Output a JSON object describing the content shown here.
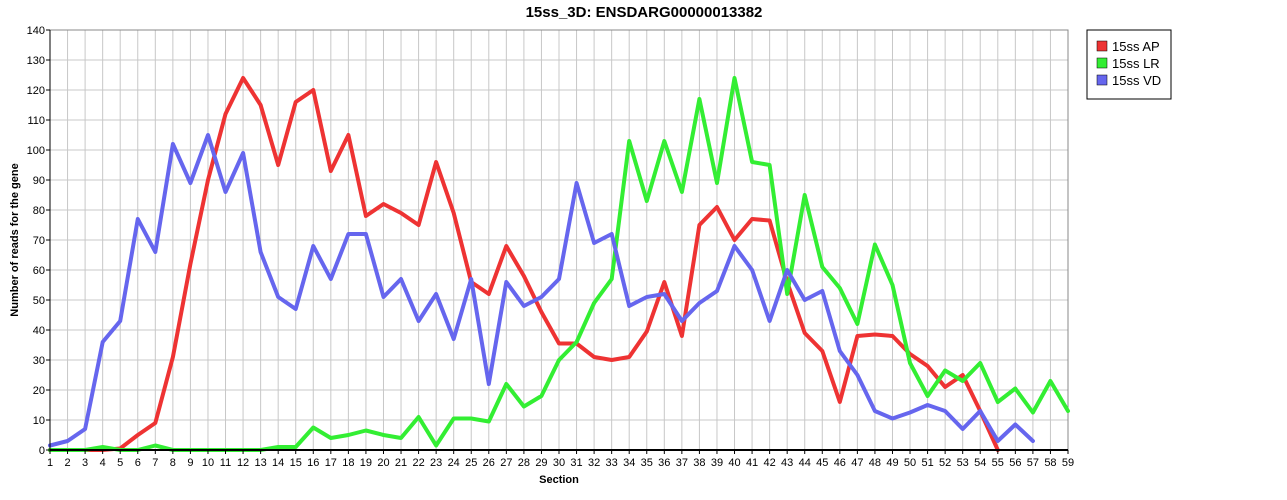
{
  "chart_data": {
    "type": "line",
    "title": "15ss_3D: ENSDARG00000013382",
    "xlabel": "Section",
    "ylabel": "Number of reads for the gene",
    "ylim": [
      0,
      140
    ],
    "yticks": [
      0,
      10,
      20,
      30,
      40,
      50,
      60,
      70,
      80,
      90,
      100,
      110,
      120,
      130,
      140
    ],
    "grid": true,
    "legend_position": "top-right",
    "x": [
      1,
      2,
      3,
      4,
      5,
      6,
      7,
      8,
      9,
      10,
      11,
      12,
      13,
      14,
      15,
      16,
      17,
      18,
      19,
      20,
      21,
      22,
      23,
      24,
      25,
      26,
      27,
      28,
      29,
      30,
      31,
      32,
      33,
      34,
      35,
      36,
      37,
      38,
      39,
      40,
      41,
      42,
      43,
      44,
      45,
      46,
      47,
      48,
      49,
      50,
      51,
      52,
      53,
      54,
      55,
      56,
      57,
      58,
      59
    ],
    "series": [
      {
        "name": "15ss AP",
        "color": "#ee3333",
        "values": [
          0,
          0,
          0,
          0,
          0.5,
          5,
          9,
          31,
          62,
          90,
          112,
          124,
          115,
          95,
          116,
          120,
          93,
          105,
          78,
          82,
          79,
          75,
          96,
          79,
          56,
          52,
          68,
          58,
          46,
          35.5,
          35.5,
          31,
          30,
          31,
          39.5,
          56,
          38,
          75,
          81,
          70,
          77,
          76.5,
          56,
          39,
          33,
          16,
          38,
          38.5,
          38,
          32,
          28,
          21,
          25,
          13,
          0,
          null,
          null,
          null,
          null
        ]
      },
      {
        "name": "15ss LR",
        "color": "#33ee33",
        "values": [
          0,
          0,
          0,
          1,
          0,
          0,
          1.5,
          0,
          0,
          0,
          0,
          0,
          0,
          1,
          1,
          7.5,
          4,
          5,
          6.5,
          5,
          4,
          11,
          1.5,
          10.5,
          10.5,
          9.5,
          22,
          14.5,
          18,
          30,
          36,
          49,
          57,
          103,
          83,
          103,
          86,
          117,
          89,
          124,
          96,
          95,
          52,
          85,
          61,
          54,
          42,
          68.5,
          55,
          29,
          18,
          26.5,
          23,
          29,
          16,
          20.5,
          12.5,
          23,
          13
        ]
      },
      {
        "name": "15ss VD",
        "color": "#6666ee",
        "values": [
          1.5,
          3,
          7,
          36,
          43,
          77,
          66,
          102,
          89,
          105,
          86,
          99,
          66,
          51,
          47,
          68,
          57,
          72,
          72,
          51,
          57,
          43,
          52,
          37,
          57,
          22,
          56,
          48,
          51,
          57,
          89,
          69,
          72,
          48,
          51,
          52,
          43,
          49,
          53,
          68,
          60,
          43,
          60,
          50,
          53,
          33,
          25,
          13,
          10.5,
          12.5,
          15,
          13,
          7,
          13,
          3,
          8.5,
          3,
          null,
          null
        ]
      }
    ]
  }
}
